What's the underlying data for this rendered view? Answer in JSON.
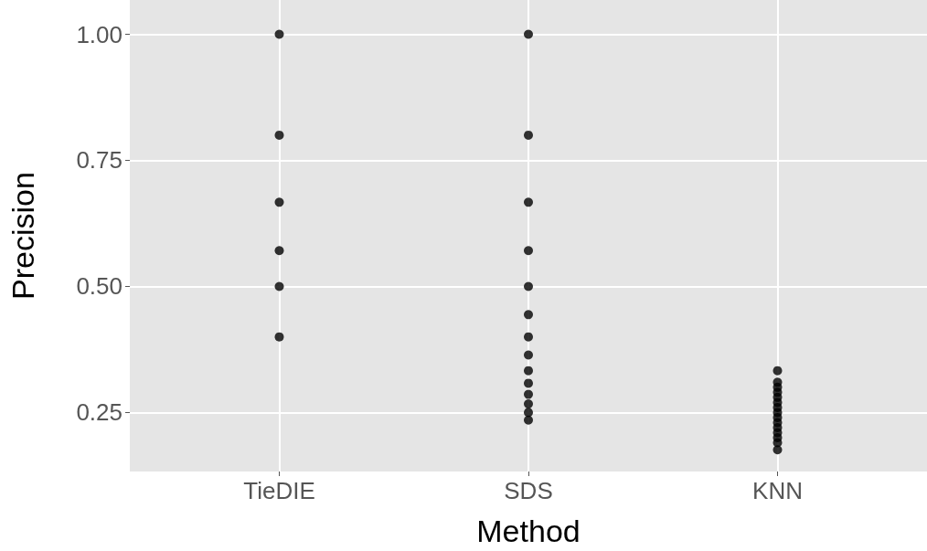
{
  "chart_data": {
    "type": "scatter",
    "xlabel": "Method",
    "ylabel": "Precision",
    "categories": [
      "TieDIE",
      "SDS",
      "KNN"
    ],
    "series": [
      {
        "color": "#000000",
        "x": [
          "TieDIE",
          "TieDIE",
          "TieDIE",
          "TieDIE",
          "TieDIE",
          "TieDIE"
        ],
        "values": [
          1.0,
          0.8,
          0.667,
          0.571,
          0.5,
          0.4
        ]
      },
      {
        "color": "#000000",
        "x": [
          "SDS",
          "SDS",
          "SDS",
          "SDS",
          "SDS",
          "SDS",
          "SDS",
          "SDS",
          "SDS",
          "SDS",
          "SDS",
          "SDS",
          "SDS",
          "SDS"
        ],
        "values": [
          1.0,
          0.8,
          0.667,
          0.571,
          0.5,
          0.444,
          0.4,
          0.364,
          0.333,
          0.308,
          0.286,
          0.267,
          0.25,
          0.235
        ]
      },
      {
        "color": "#000000",
        "x": [
          "KNN",
          "KNN",
          "KNN",
          "KNN",
          "KNN",
          "KNN",
          "KNN",
          "KNN",
          "KNN",
          "KNN",
          "KNN",
          "KNN",
          "KNN",
          "KNN",
          "KNN"
        ],
        "values": [
          0.333,
          0.31,
          0.3,
          0.29,
          0.28,
          0.27,
          0.26,
          0.25,
          0.24,
          0.23,
          0.22,
          0.21,
          0.2,
          0.19,
          0.176
        ]
      }
    ],
    "ylim": [
      0.133,
      1.068
    ],
    "yticks": [
      {
        "value": 0.25,
        "label": "0.25"
      },
      {
        "value": 0.5,
        "label": "0.50"
      },
      {
        "value": 0.75,
        "label": "0.75"
      },
      {
        "value": 1.0,
        "label": "1.00"
      }
    ],
    "grid": true,
    "marker": "circle"
  }
}
